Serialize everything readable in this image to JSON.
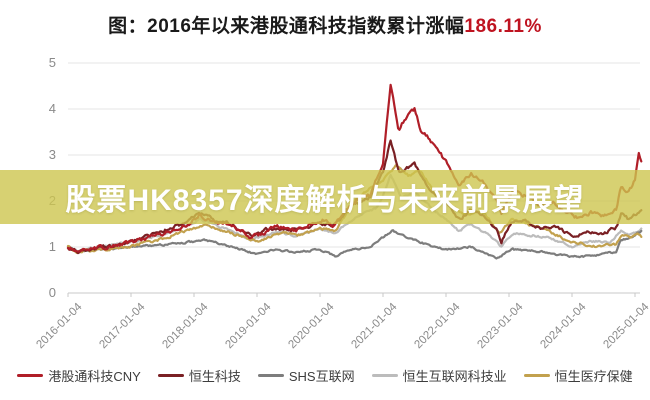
{
  "title": {
    "prefix": "图：2016年以来港股通科技指数累计涨幅",
    "highlight": "186.11%",
    "highlight_color": "#bf1320",
    "text_color": "#1a1a1a"
  },
  "overlay_banner": {
    "text": "股票HK8357深度解析与未来前景展望",
    "bg_color": "rgba(205,198,79,0.8)",
    "text_color": "#ffffff"
  },
  "chart_data": {
    "type": "line",
    "title": "图：2016年以来港股通科技指数累计涨幅186.11%",
    "xlabel": "",
    "ylabel": "",
    "grid": true,
    "legend_position": "bottom",
    "x_axis": {
      "tick_labels": [
        "2016-01-04",
        "2017-01-04",
        "2018-01-04",
        "2019-01-04",
        "2020-01-04",
        "2021-01-04",
        "2022-01-04",
        "2023-01-04",
        "2024-01-04",
        "2025-01-04"
      ],
      "tick_years": [
        2016,
        2017,
        2018,
        2019,
        2020,
        2021,
        2022,
        2023,
        2024,
        2025
      ],
      "range_years": [
        2016.0,
        2025.1
      ]
    },
    "y_axis": {
      "ticks": [
        0,
        1,
        2,
        3,
        4,
        5
      ],
      "range": [
        0,
        5
      ]
    },
    "series": [
      {
        "name": "恒生互联网科技业",
        "color": "#bcbcbc",
        "keypoints": [
          [
            2016.0,
            1.0
          ],
          [
            2016.15,
            0.92
          ],
          [
            2016.5,
            1.0
          ],
          [
            2017.0,
            1.1
          ],
          [
            2017.5,
            1.28
          ],
          [
            2017.95,
            1.5
          ],
          [
            2018.1,
            1.6
          ],
          [
            2018.5,
            1.4
          ],
          [
            2018.9,
            1.15
          ],
          [
            2019.3,
            1.32
          ],
          [
            2019.6,
            1.25
          ],
          [
            2020.0,
            1.4
          ],
          [
            2020.25,
            1.32
          ],
          [
            2020.6,
            1.7
          ],
          [
            2020.9,
            1.85
          ],
          [
            2021.0,
            2.1
          ],
          [
            2021.12,
            2.55
          ],
          [
            2021.3,
            2.05
          ],
          [
            2021.5,
            2.2
          ],
          [
            2021.8,
            1.8
          ],
          [
            2022.0,
            1.6
          ],
          [
            2022.2,
            1.35
          ],
          [
            2022.4,
            1.5
          ],
          [
            2022.8,
            1.15
          ],
          [
            2022.88,
            1.0
          ],
          [
            2023.05,
            1.3
          ],
          [
            2023.4,
            1.25
          ],
          [
            2023.7,
            1.18
          ],
          [
            2024.0,
            1.02
          ],
          [
            2024.3,
            1.12
          ],
          [
            2024.6,
            1.1
          ],
          [
            2024.78,
            1.35
          ],
          [
            2024.9,
            1.28
          ],
          [
            2025.0,
            1.32
          ],
          [
            2025.1,
            1.4
          ]
        ]
      },
      {
        "name": "SHS互联网",
        "color": "#7d7d7d",
        "keypoints": [
          [
            2016.0,
            1.0
          ],
          [
            2016.15,
            0.9
          ],
          [
            2016.5,
            0.95
          ],
          [
            2017.0,
            1.0
          ],
          [
            2017.5,
            1.05
          ],
          [
            2018.0,
            1.12
          ],
          [
            2018.2,
            1.15
          ],
          [
            2018.6,
            1.0
          ],
          [
            2019.0,
            0.85
          ],
          [
            2019.3,
            0.95
          ],
          [
            2019.6,
            0.88
          ],
          [
            2020.0,
            0.95
          ],
          [
            2020.25,
            0.8
          ],
          [
            2020.5,
            0.95
          ],
          [
            2020.8,
            1.0
          ],
          [
            2021.0,
            1.2
          ],
          [
            2021.15,
            1.35
          ],
          [
            2021.5,
            1.15
          ],
          [
            2021.8,
            1.0
          ],
          [
            2022.0,
            0.95
          ],
          [
            2022.4,
            1.0
          ],
          [
            2022.8,
            0.75
          ],
          [
            2023.05,
            0.95
          ],
          [
            2023.5,
            0.9
          ],
          [
            2024.0,
            0.78
          ],
          [
            2024.4,
            0.82
          ],
          [
            2024.7,
            0.9
          ],
          [
            2024.78,
            1.15
          ],
          [
            2025.0,
            1.25
          ],
          [
            2025.1,
            1.35
          ]
        ]
      },
      {
        "name": "恒生医疗保健",
        "color": "#c2a14e",
        "keypoints": [
          [
            2016.0,
            1.0
          ],
          [
            2016.15,
            0.88
          ],
          [
            2016.5,
            0.94
          ],
          [
            2017.0,
            1.02
          ],
          [
            2017.5,
            1.18
          ],
          [
            2018.0,
            1.4
          ],
          [
            2018.2,
            1.5
          ],
          [
            2018.6,
            1.3
          ],
          [
            2019.0,
            1.12
          ],
          [
            2019.4,
            1.32
          ],
          [
            2019.7,
            1.25
          ],
          [
            2020.0,
            1.42
          ],
          [
            2020.25,
            1.35
          ],
          [
            2020.55,
            2.0
          ],
          [
            2020.8,
            2.3
          ],
          [
            2021.0,
            2.45
          ],
          [
            2021.2,
            2.75
          ],
          [
            2021.4,
            2.55
          ],
          [
            2021.6,
            2.65
          ],
          [
            2021.8,
            2.2
          ],
          [
            2022.0,
            1.95
          ],
          [
            2022.3,
            1.7
          ],
          [
            2022.6,
            1.75
          ],
          [
            2022.85,
            1.3
          ],
          [
            2023.05,
            1.6
          ],
          [
            2023.4,
            1.45
          ],
          [
            2023.7,
            1.3
          ],
          [
            2024.0,
            1.1
          ],
          [
            2024.4,
            1.02
          ],
          [
            2024.7,
            1.05
          ],
          [
            2024.8,
            1.28
          ],
          [
            2024.95,
            1.2
          ],
          [
            2025.05,
            1.28
          ],
          [
            2025.1,
            1.22
          ]
        ]
      },
      {
        "name": "恒生科技",
        "color": "#7a2024",
        "keypoints": [
          [
            2016.0,
            1.0
          ],
          [
            2016.15,
            0.88
          ],
          [
            2016.4,
            0.96
          ],
          [
            2016.7,
            1.02
          ],
          [
            2017.0,
            1.12
          ],
          [
            2017.3,
            1.25
          ],
          [
            2017.6,
            1.4
          ],
          [
            2017.9,
            1.55
          ],
          [
            2018.08,
            1.78
          ],
          [
            2018.3,
            1.6
          ],
          [
            2018.6,
            1.5
          ],
          [
            2018.9,
            1.25
          ],
          [
            2019.2,
            1.4
          ],
          [
            2019.5,
            1.35
          ],
          [
            2019.8,
            1.45
          ],
          [
            2020.0,
            1.55
          ],
          [
            2020.2,
            1.45
          ],
          [
            2020.5,
            1.9
          ],
          [
            2020.8,
            2.1
          ],
          [
            2021.0,
            2.6
          ],
          [
            2021.12,
            3.3
          ],
          [
            2021.25,
            2.65
          ],
          [
            2021.5,
            2.8
          ],
          [
            2021.75,
            2.25
          ],
          [
            2022.0,
            1.95
          ],
          [
            2022.2,
            1.6
          ],
          [
            2022.4,
            1.8
          ],
          [
            2022.6,
            1.7
          ],
          [
            2022.8,
            1.4
          ],
          [
            2022.88,
            1.12
          ],
          [
            2023.05,
            1.55
          ],
          [
            2023.3,
            1.55
          ],
          [
            2023.5,
            1.42
          ],
          [
            2023.75,
            1.45
          ],
          [
            2024.0,
            1.22
          ],
          [
            2024.25,
            1.35
          ],
          [
            2024.5,
            1.3
          ],
          [
            2024.7,
            1.42
          ],
          [
            2024.78,
            1.72
          ],
          [
            2024.9,
            1.6
          ],
          [
            2025.0,
            1.7
          ],
          [
            2025.1,
            1.8
          ]
        ]
      },
      {
        "name": "港股通科技CNY",
        "color": "#b01e28",
        "keypoints": [
          [
            2016.0,
            1.0
          ],
          [
            2016.15,
            0.9
          ],
          [
            2016.4,
            0.98
          ],
          [
            2016.7,
            1.02
          ],
          [
            2017.0,
            1.1
          ],
          [
            2017.3,
            1.2
          ],
          [
            2017.6,
            1.32
          ],
          [
            2017.9,
            1.48
          ],
          [
            2018.08,
            1.72
          ],
          [
            2018.3,
            1.55
          ],
          [
            2018.6,
            1.48
          ],
          [
            2018.9,
            1.22
          ],
          [
            2019.1,
            1.3
          ],
          [
            2019.3,
            1.45
          ],
          [
            2019.6,
            1.35
          ],
          [
            2019.9,
            1.5
          ],
          [
            2020.05,
            1.58
          ],
          [
            2020.2,
            1.48
          ],
          [
            2020.45,
            1.85
          ],
          [
            2020.6,
            2.05
          ],
          [
            2020.8,
            2.15
          ],
          [
            2021.0,
            2.8
          ],
          [
            2021.12,
            4.55
          ],
          [
            2021.25,
            3.55
          ],
          [
            2021.35,
            3.8
          ],
          [
            2021.5,
            4.0
          ],
          [
            2021.6,
            3.55
          ],
          [
            2021.8,
            3.25
          ],
          [
            2022.0,
            2.85
          ],
          [
            2022.2,
            2.35
          ],
          [
            2022.4,
            2.6
          ],
          [
            2022.6,
            2.4
          ],
          [
            2022.8,
            2.0
          ],
          [
            2022.88,
            1.75
          ],
          [
            2023.05,
            2.2
          ],
          [
            2023.3,
            2.1
          ],
          [
            2023.5,
            1.9
          ],
          [
            2023.7,
            2.0
          ],
          [
            2023.9,
            1.75
          ],
          [
            2024.1,
            1.62
          ],
          [
            2024.3,
            1.75
          ],
          [
            2024.5,
            1.68
          ],
          [
            2024.7,
            1.8
          ],
          [
            2024.78,
            2.3
          ],
          [
            2024.9,
            2.2
          ],
          [
            2025.0,
            2.45
          ],
          [
            2025.06,
            3.05
          ],
          [
            2025.1,
            2.86
          ]
        ]
      }
    ],
    "legend_order": [
      "港股通科技CNY",
      "恒生科技",
      "SHS互联网",
      "恒生互联网科技业",
      "恒生医疗保健"
    ]
  },
  "style": {
    "gridline_color": "#e6e6e6",
    "axis_color": "#c9c9c9",
    "tick_label_color": "#8a8a8a",
    "legend_text_color": "#3d3d3d"
  }
}
